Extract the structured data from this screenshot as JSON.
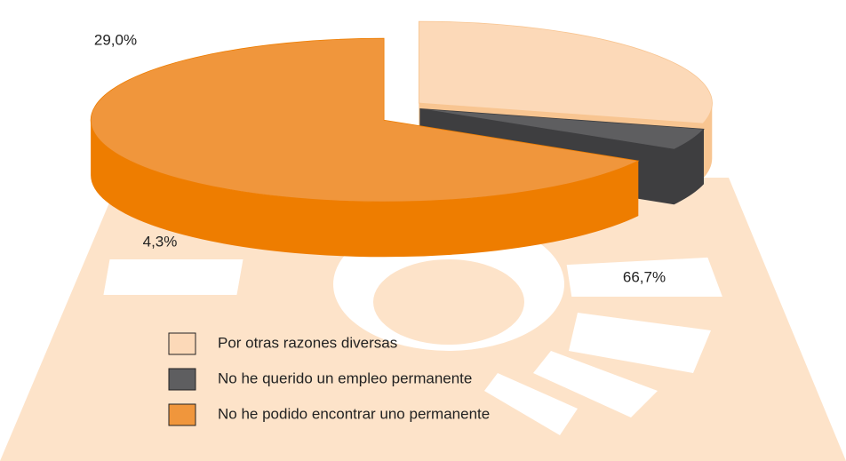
{
  "chart_data": {
    "type": "pie",
    "categories": [
      "Por otras razones diversas",
      "No he querido un empleo permanente",
      "No he podido encontrar uno permanente"
    ],
    "values": [
      29.0,
      4.3,
      66.7
    ],
    "value_labels": [
      "29,0%",
      "4,3%",
      "66,7%"
    ],
    "colors": [
      "#fcd9b8",
      "#5e5e60",
      "#f0963c"
    ],
    "side_colors": [
      "#f8c591",
      "#3e3e40",
      "#ee7d00"
    ]
  }
}
